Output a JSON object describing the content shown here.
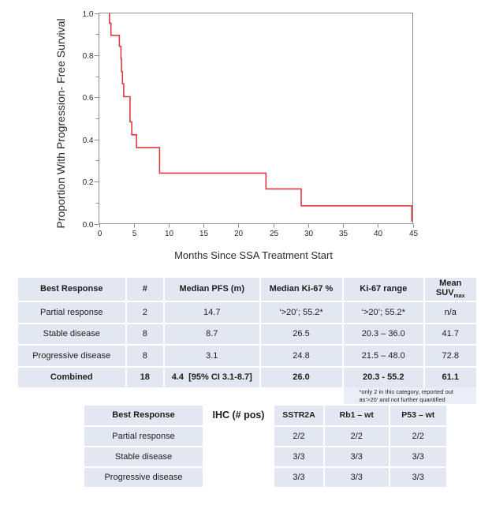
{
  "chart_data": {
    "type": "line",
    "subtype": "kaplan-meier-step",
    "title": "",
    "xlabel": "Months Since SSA Treatment Start",
    "ylabel": "Proportion With Progression- Free Survival",
    "xlim": [
      0,
      45
    ],
    "ylim": [
      0,
      1
    ],
    "x_ticks": [
      0,
      5,
      10,
      15,
      20,
      25,
      30,
      35,
      40,
      45
    ],
    "y_major_ticks": [
      0.0,
      0.2,
      0.4,
      0.6,
      0.8,
      1.0
    ],
    "y_major_tick_labels": [
      "0.0",
      "0.2",
      "0.4",
      "0.6",
      "0.8",
      "1.0"
    ],
    "y_minor_ticks": [
      0.1,
      0.3,
      0.5,
      0.7,
      0.9
    ],
    "grid": false,
    "legend": false,
    "frame": true,
    "series": [
      {
        "name": "Progression-Free Survival",
        "color": "#dd3b43",
        "steps": [
          [
            1.5,
            1.0
          ],
          [
            1.5,
            0.952
          ],
          [
            1.72,
            0.952
          ],
          [
            1.72,
            0.894
          ],
          [
            2.93,
            0.894
          ],
          [
            2.93,
            0.842
          ],
          [
            3.15,
            0.842
          ],
          [
            3.15,
            0.783
          ],
          [
            3.23,
            0.783
          ],
          [
            3.23,
            0.722
          ],
          [
            3.37,
            0.722
          ],
          [
            3.37,
            0.664
          ],
          [
            3.55,
            0.664
          ],
          [
            3.55,
            0.603
          ],
          [
            4.45,
            0.603
          ],
          [
            4.45,
            0.483
          ],
          [
            4.7,
            0.483
          ],
          [
            4.7,
            0.422
          ],
          [
            5.38,
            0.422
          ],
          [
            5.38,
            0.361
          ],
          [
            8.7,
            0.361
          ],
          [
            8.7,
            0.24
          ],
          [
            23.95,
            0.24
          ],
          [
            23.95,
            0.165
          ],
          [
            29.0,
            0.165
          ],
          [
            29.0,
            0.085
          ],
          [
            44.85,
            0.085
          ],
          [
            44.85,
            0.01
          ]
        ]
      }
    ]
  },
  "table1": {
    "header": [
      "Best Response",
      "#",
      "Median PFS (m)",
      "Median Ki-67 %",
      "Ki-67 range"
    ],
    "suv_header": {
      "top": "Mean",
      "base": "SUV",
      "sub": "max"
    },
    "rows": [
      [
        "Partial response",
        "2",
        "14.7",
        "‘>20’; 55.2*",
        "‘>20’; 55.2*",
        "n/a"
      ],
      [
        "Stable disease",
        "8",
        "8.7",
        "26.5",
        "20.3 – 36.0",
        "41.7"
      ],
      [
        "Progressive disease",
        "8",
        "3.1",
        "24.8",
        "21.5 – 48.0",
        "72.8"
      ]
    ],
    "combined_row": [
      "Combined",
      "18",
      "4.4  [95% CI 3.1-8.7]",
      "26.0",
      "20.3 - 55.2",
      "61.1"
    ],
    "footnote_lines": [
      "*only 2 in this category, reported out",
      "as’>20’ and not further quantified"
    ]
  },
  "table2": {
    "header": [
      "Best Response",
      "IHC (# pos)",
      "SSTR2A",
      "Rb1 – wt",
      "P53 – wt"
    ],
    "rows": [
      [
        "Partial response",
        "",
        "2/2",
        "2/2",
        "2/2"
      ],
      [
        "Stable disease",
        "",
        "3/3",
        "3/3",
        "3/3"
      ],
      [
        "Progressive disease",
        "",
        "3/3",
        "3/3",
        "3/3"
      ]
    ]
  },
  "colors": {
    "curve": "#dd3b43",
    "axis": "#8d8d8d",
    "tick_text": "#2b2b2b",
    "table_row_bg": "#e3e7f2",
    "footnote_bg": "#ebeef6"
  }
}
